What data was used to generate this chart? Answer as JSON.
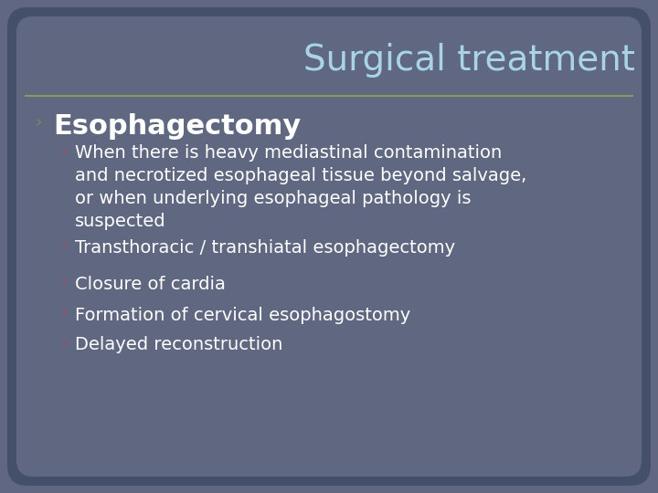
{
  "title": "Surgical treatment",
  "title_color": "#a8d4e6",
  "title_fontsize": 28,
  "separator_color": "#8a9960",
  "bg_color": "#5f6880",
  "border_color": "#44506a",
  "bullet1_text": "Esophagectomy",
  "bullet1_color": "#ffffff",
  "bullet1_fontsize": 22,
  "bullet1_marker_color": "#7a8a60",
  "sub_bullets": [
    "When there is heavy mediastinal contamination\nand necrotized esophageal tissue beyond salvage,\nor when underlying esophageal pathology is\nsuspected",
    "Transthoracic / transhiatal esophagectomy",
    "Closure of cardia",
    "Formation of cervical esophagostomy",
    "Delayed reconstruction"
  ],
  "sub_bullet_color": "#ffffff",
  "sub_bullet_fontsize": 14,
  "sub_bullet_marker_color": "#cc3355",
  "figsize": [
    7.2,
    5.4
  ],
  "dpi": 100
}
